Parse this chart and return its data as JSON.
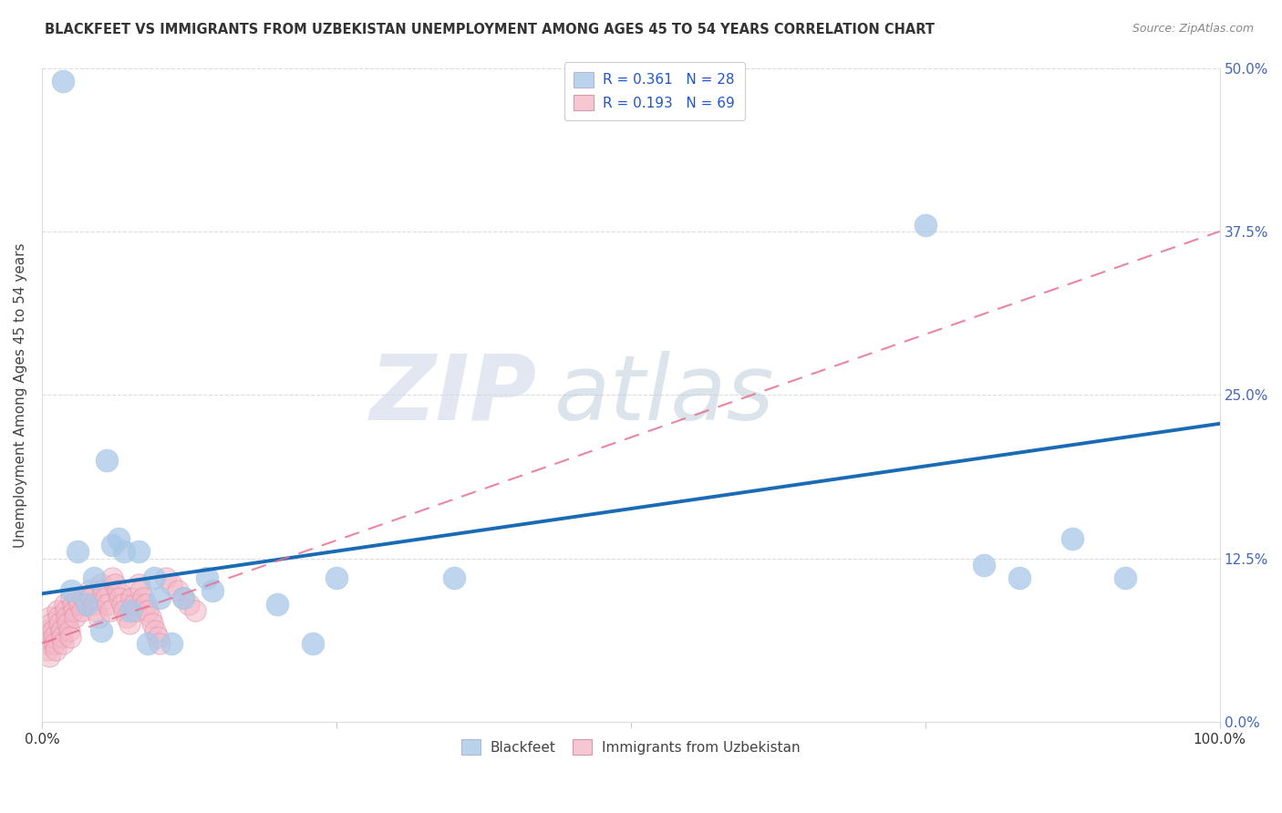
{
  "title": "BLACKFEET VS IMMIGRANTS FROM UZBEKISTAN UNEMPLOYMENT AMONG AGES 45 TO 54 YEARS CORRELATION CHART",
  "source": "Source: ZipAtlas.com",
  "ylabel": "Unemployment Among Ages 45 to 54 years",
  "legend_label_1": "Blackfeet",
  "legend_label_2": "Immigrants from Uzbekistan",
  "R1": "0.361",
  "N1": "28",
  "R2": "0.193",
  "N2": "69",
  "color_blue": "#a8c8e8",
  "color_pink": "#f4b8c8",
  "color_blue_line": "#1a6bb5",
  "color_pink_line": "#e87090",
  "watermark_zip": "ZIP",
  "watermark_atlas": "atlas",
  "blackfeet_x": [
    0.018,
    0.025,
    0.03,
    0.038,
    0.044,
    0.05,
    0.055,
    0.06,
    0.065,
    0.07,
    0.075,
    0.082,
    0.09,
    0.095,
    0.1,
    0.11,
    0.12,
    0.14,
    0.145,
    0.2,
    0.23,
    0.25,
    0.35,
    0.75,
    0.8,
    0.83,
    0.875,
    0.92
  ],
  "blackfeet_y": [
    0.49,
    0.1,
    0.13,
    0.09,
    0.11,
    0.07,
    0.2,
    0.135,
    0.14,
    0.13,
    0.085,
    0.13,
    0.06,
    0.11,
    0.095,
    0.06,
    0.095,
    0.11,
    0.1,
    0.09,
    0.06,
    0.11,
    0.11,
    0.38,
    0.12,
    0.11,
    0.14,
    0.11
  ],
  "uzbek_x": [
    0.002,
    0.003,
    0.004,
    0.005,
    0.006,
    0.007,
    0.008,
    0.009,
    0.01,
    0.011,
    0.012,
    0.013,
    0.014,
    0.015,
    0.016,
    0.017,
    0.018,
    0.019,
    0.02,
    0.021,
    0.022,
    0.023,
    0.024,
    0.025,
    0.026,
    0.027,
    0.028,
    0.03,
    0.032,
    0.034,
    0.036,
    0.038,
    0.04,
    0.042,
    0.044,
    0.046,
    0.048,
    0.05,
    0.052,
    0.054,
    0.056,
    0.058,
    0.06,
    0.062,
    0.064,
    0.066,
    0.068,
    0.07,
    0.072,
    0.074,
    0.076,
    0.078,
    0.08,
    0.082,
    0.084,
    0.086,
    0.088,
    0.09,
    0.092,
    0.094,
    0.096,
    0.098,
    0.1,
    0.105,
    0.11,
    0.115,
    0.12,
    0.125,
    0.13
  ],
  "uzbek_y": [
    0.07,
    0.065,
    0.06,
    0.055,
    0.05,
    0.08,
    0.075,
    0.07,
    0.065,
    0.06,
    0.055,
    0.085,
    0.08,
    0.075,
    0.07,
    0.065,
    0.06,
    0.09,
    0.085,
    0.08,
    0.075,
    0.07,
    0.065,
    0.095,
    0.09,
    0.085,
    0.08,
    0.095,
    0.09,
    0.085,
    0.095,
    0.09,
    0.1,
    0.095,
    0.09,
    0.085,
    0.08,
    0.105,
    0.1,
    0.095,
    0.09,
    0.085,
    0.11,
    0.105,
    0.1,
    0.095,
    0.09,
    0.085,
    0.08,
    0.075,
    0.095,
    0.09,
    0.085,
    0.105,
    0.1,
    0.095,
    0.09,
    0.085,
    0.08,
    0.075,
    0.07,
    0.065,
    0.06,
    0.11,
    0.105,
    0.1,
    0.095,
    0.09,
    0.085
  ],
  "blue_line_x0": 0.0,
  "blue_line_y0": 0.098,
  "blue_line_x1": 1.0,
  "blue_line_y1": 0.228,
  "pink_line_x0": 0.0,
  "pink_line_y0": 0.06,
  "pink_line_x1": 1.0,
  "pink_line_y1": 0.375,
  "xlim": [
    0.0,
    1.0
  ],
  "ylim": [
    0.0,
    0.5
  ],
  "background_color": "#ffffff",
  "grid_color": "#cccccc"
}
